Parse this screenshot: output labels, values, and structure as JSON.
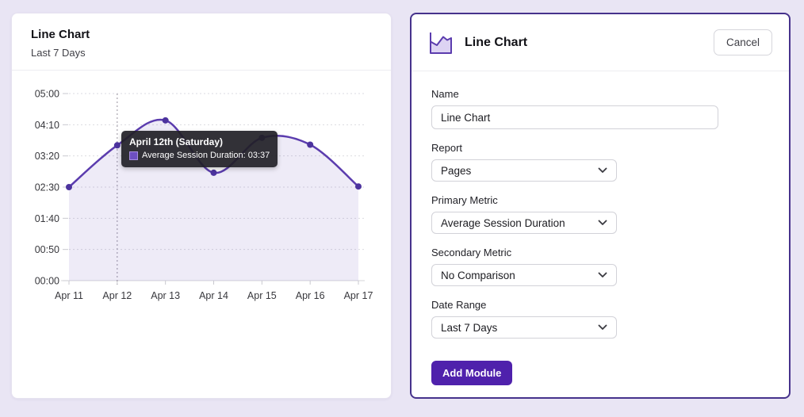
{
  "left_card": {
    "title": "Line Chart",
    "subtitle": "Last 7 Days"
  },
  "chart_data": {
    "type": "line",
    "title": "Line Chart",
    "subtitle": "Last 7 Days",
    "x": [
      "Apr 11",
      "Apr 12",
      "Apr 13",
      "Apr 14",
      "Apr 15",
      "Apr 16",
      "Apr 17"
    ],
    "y_tick_labels": [
      "00:00",
      "00:50",
      "01:40",
      "02:30",
      "03:20",
      "04:10",
      "05:00"
    ],
    "ylim_minutes": [
      0,
      300
    ],
    "y_step_minutes": 50,
    "series": [
      {
        "name": "Average Session Duration",
        "values_minutes": [
          150,
          217,
          257,
          173,
          229,
          218,
          151
        ],
        "values_display": [
          "02:30",
          "03:37",
          "04:17",
          "02:53",
          "03:49",
          "03:38",
          "02:31"
        ]
      }
    ],
    "grid": "dotted horizontal gridlines, solid baseline",
    "legend_position": "none",
    "line_color": "#5b3cae",
    "point_color": "#4c339e",
    "fill_color": "rgba(91,60,174,0.10)",
    "hover_index": 1,
    "tooltip": {
      "date_label": "April 12th (Saturday)",
      "metric": "Average Session Duration",
      "value": "03:37",
      "line": "Average Session Duration: 03:37"
    }
  },
  "form": {
    "title": "Line Chart",
    "cancel_label": "Cancel",
    "fields": [
      {
        "label": "Name",
        "type": "input",
        "value": "Line Chart"
      },
      {
        "label": "Report",
        "type": "select",
        "value": "Pages"
      },
      {
        "label": "Primary Metric",
        "type": "select",
        "value": "Average Session Duration"
      },
      {
        "label": "Secondary Metric",
        "type": "select",
        "value": "No Comparison"
      },
      {
        "label": "Date Range",
        "type": "select",
        "value": "Last 7 Days"
      }
    ],
    "submit_label": "Add Module"
  },
  "colors": {
    "page_background": "#e9e5f4",
    "card_background": "#ffffff",
    "right_card_border": "#46328c",
    "accent_purple": "#5b3cae",
    "button_purple": "#4f21ac",
    "tooltip_background": "rgba(33,31,38,0.92)",
    "tooltip_swatch": "#6d4fc1"
  }
}
